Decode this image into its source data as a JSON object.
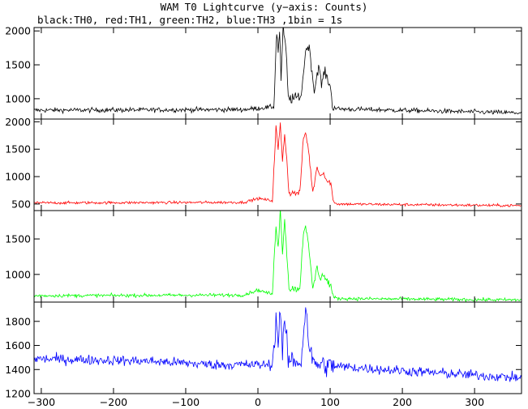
{
  "chart_data": {
    "type": "line",
    "title": "WAM T0 Lightcurve (y−axis: Counts)",
    "subtitle": "black:TH0, red:TH1, green:TH2, blue:TH3 ,1bin = 1s",
    "xlim": [
      -310,
      365
    ],
    "x_ticks": [
      -300,
      -200,
      -100,
      0,
      100,
      200,
      300
    ],
    "x_tick_labels": [
      "−300",
      "−200",
      "−100",
      "0",
      "100",
      "200",
      "300"
    ],
    "panels": [
      {
        "series_key": "TH0",
        "color": "#000000",
        "ylim": [
          700,
          2050
        ],
        "y_ticks": [
          1000,
          1500,
          2000
        ],
        "y_tick_labels": [
          "1000",
          "1500",
          "2000"
        ],
        "baseline_pre": 830,
        "baseline_post": 790,
        "noise": 25,
        "profile": [
          [
            -310,
            830
          ],
          [
            -20,
            840
          ],
          [
            0,
            860
          ],
          [
            22,
            880
          ],
          [
            26,
            2000
          ],
          [
            28,
            1700
          ],
          [
            30,
            2000
          ],
          [
            32,
            1300
          ],
          [
            35,
            2050
          ],
          [
            38,
            1800
          ],
          [
            40,
            1500
          ],
          [
            42,
            1000
          ],
          [
            50,
            1000
          ],
          [
            60,
            1050
          ],
          [
            65,
            1600
          ],
          [
            68,
            1800
          ],
          [
            72,
            1700
          ],
          [
            78,
            1100
          ],
          [
            84,
            1500
          ],
          [
            88,
            1200
          ],
          [
            92,
            1400
          ],
          [
            96,
            1300
          ],
          [
            100,
            1200
          ],
          [
            103,
            900
          ],
          [
            110,
            850
          ],
          [
            365,
            790
          ]
        ]
      },
      {
        "series_key": "TH1",
        "color": "#ff0000",
        "ylim": [
          380,
          2050
        ],
        "y_ticks": [
          500,
          1000,
          1500,
          2000
        ],
        "y_tick_labels": [
          "500",
          "1000",
          "1500",
          "2000"
        ],
        "baseline_pre": 520,
        "baseline_post": 470,
        "noise": 18,
        "profile": [
          [
            -310,
            520
          ],
          [
            -20,
            530
          ],
          [
            0,
            600
          ],
          [
            20,
            560
          ],
          [
            25,
            1900
          ],
          [
            28,
            1500
          ],
          [
            31,
            1950
          ],
          [
            34,
            1300
          ],
          [
            37,
            1800
          ],
          [
            40,
            1300
          ],
          [
            43,
            700
          ],
          [
            58,
            700
          ],
          [
            63,
            1700
          ],
          [
            66,
            1800
          ],
          [
            70,
            1500
          ],
          [
            76,
            700
          ],
          [
            82,
            1200
          ],
          [
            86,
            1000
          ],
          [
            90,
            1100
          ],
          [
            96,
            900
          ],
          [
            101,
            900
          ],
          [
            104,
            550
          ],
          [
            110,
            500
          ],
          [
            365,
            470
          ]
        ]
      },
      {
        "series_key": "TH2",
        "color": "#00ff00",
        "ylim": [
          610,
          1900
        ],
        "y_ticks": [
          1000,
          1500
        ],
        "y_tick_labels": [
          "1000",
          "1500"
        ],
        "baseline_pre": 700,
        "baseline_post": 640,
        "noise": 17,
        "profile": [
          [
            -310,
            700
          ],
          [
            -20,
            710
          ],
          [
            0,
            780
          ],
          [
            20,
            720
          ],
          [
            25,
            1700
          ],
          [
            28,
            1400
          ],
          [
            31,
            1900
          ],
          [
            34,
            1300
          ],
          [
            37,
            1800
          ],
          [
            40,
            1300
          ],
          [
            43,
            800
          ],
          [
            58,
            800
          ],
          [
            63,
            1600
          ],
          [
            66,
            1700
          ],
          [
            70,
            1400
          ],
          [
            76,
            800
          ],
          [
            82,
            1100
          ],
          [
            86,
            950
          ],
          [
            90,
            1000
          ],
          [
            96,
            900
          ],
          [
            101,
            850
          ],
          [
            104,
            680
          ],
          [
            110,
            660
          ],
          [
            365,
            640
          ]
        ]
      },
      {
        "series_key": "TH3",
        "color": "#0000ff",
        "ylim": [
          1200,
          1960
        ],
        "y_ticks": [
          1200,
          1400,
          1600,
          1800
        ],
        "y_tick_labels": [
          "1200",
          "1400",
          "1600",
          "1800"
        ],
        "baseline_pre": 1480,
        "baseline_post": 1330,
        "noise": 30,
        "profile": [
          [
            -310,
            1490
          ],
          [
            -150,
            1470
          ],
          [
            -60,
            1440
          ],
          [
            20,
            1440
          ],
          [
            25,
            1800
          ],
          [
            28,
            1650
          ],
          [
            31,
            1900
          ],
          [
            34,
            1550
          ],
          [
            37,
            1800
          ],
          [
            42,
            1480
          ],
          [
            60,
            1460
          ],
          [
            64,
            1800
          ],
          [
            67,
            1900
          ],
          [
            70,
            1650
          ],
          [
            76,
            1450
          ],
          [
            100,
            1430
          ],
          [
            200,
            1390
          ],
          [
            365,
            1330
          ]
        ]
      }
    ]
  }
}
